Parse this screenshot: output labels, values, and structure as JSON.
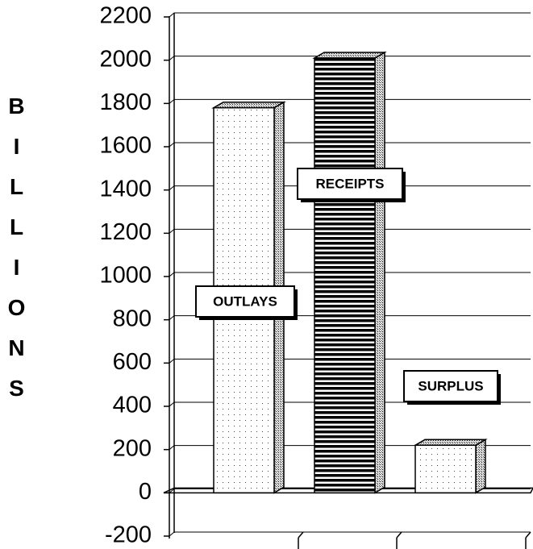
{
  "chart_data": {
    "type": "bar",
    "ylabel": "BILLIONS",
    "categories": [
      "OUTLAYS",
      "RECEIPTS",
      "SURPLUS"
    ],
    "values": [
      1780,
      2010,
      220
    ],
    "ylim": [
      -200,
      2200
    ],
    "yticks": [
      -200,
      0,
      200,
      400,
      600,
      800,
      1000,
      1200,
      1400,
      1600,
      1800,
      2000,
      2200
    ],
    "grid": true
  }
}
